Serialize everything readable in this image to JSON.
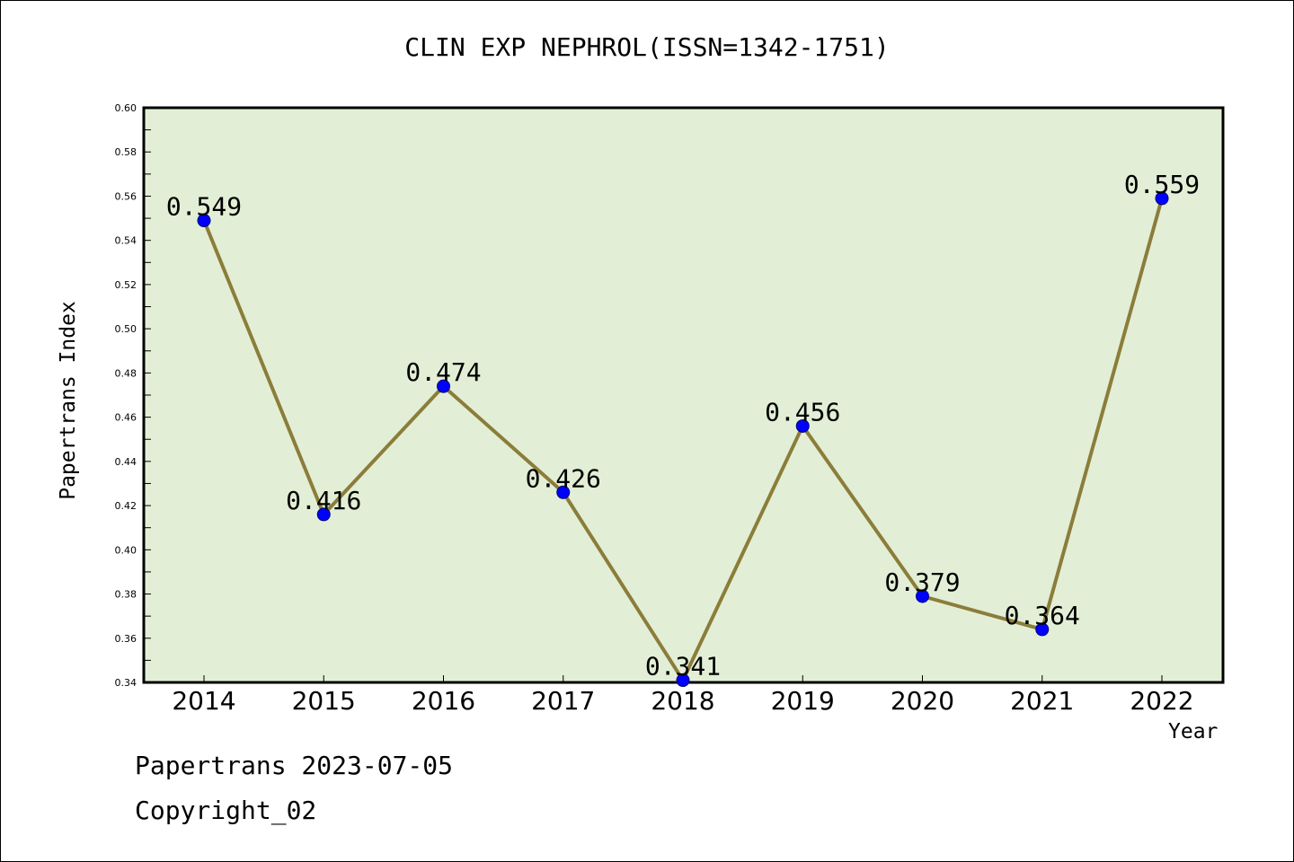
{
  "title": "CLIN EXP NEPHROL(ISSN=1342-1751)",
  "footer": {
    "date_line": "Papertrans 2023-07-05",
    "copyright": "Copyright_02"
  },
  "colors": {
    "plot_background": "#e2efd6",
    "line": "#8b7d3a",
    "marker": "#0000ff",
    "axis": "#000000"
  },
  "chart_data": {
    "type": "line",
    "title": "CLIN EXP NEPHROL(ISSN=1342-1751)",
    "xlabel": "Year",
    "ylabel": "Papertrans Index",
    "categories": [
      "2014",
      "2015",
      "2016",
      "2017",
      "2018",
      "2019",
      "2020",
      "2021",
      "2022"
    ],
    "series": [
      {
        "values": [
          0.549,
          0.416,
          0.474,
          0.426,
          0.341,
          0.456,
          0.379,
          0.364,
          0.559
        ],
        "data_labels": [
          "0.549",
          "0.416",
          "0.474",
          "0.426",
          "0.341",
          "0.456",
          "0.379",
          "0.364",
          "0.559"
        ]
      }
    ],
    "ylim": [
      0.34,
      0.6
    ],
    "yticks": [
      "0.34",
      "0.36",
      "0.38",
      "0.40",
      "0.42",
      "0.44",
      "0.46",
      "0.48",
      "0.50",
      "0.52",
      "0.54",
      "0.56",
      "0.58",
      "0.60"
    ],
    "grid": false,
    "legend": "none"
  }
}
